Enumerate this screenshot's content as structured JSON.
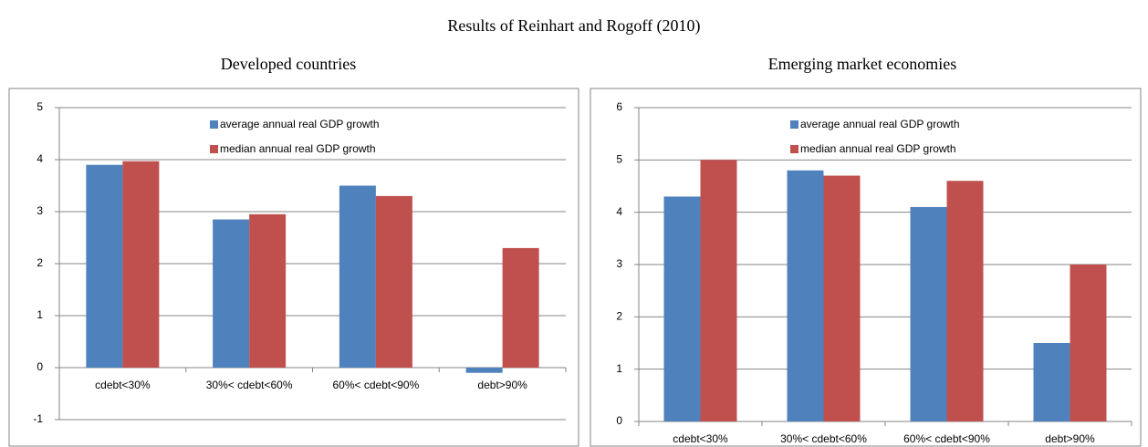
{
  "title": "Results of Reinhart and Rogoff (2010)",
  "chart_data": [
    {
      "type": "bar",
      "title": "Developed countries",
      "categories": [
        "cdebt<30%",
        "30%< cdebt<60%",
        "60%< cdebt<90%",
        "debt>90%"
      ],
      "series": [
        {
          "name": "average annual real GDP growth",
          "color": "#4f81bd",
          "values": [
            3.9,
            2.85,
            3.5,
            -0.1
          ]
        },
        {
          "name": "median annual real GDP growth",
          "color": "#c0504d",
          "values": [
            3.97,
            2.95,
            3.3,
            2.3
          ]
        }
      ],
      "ylim": [
        -1,
        5
      ],
      "yticks": [
        -1,
        0,
        1,
        2,
        3,
        4,
        5
      ],
      "grid": true,
      "legend": "top"
    },
    {
      "type": "bar",
      "title": "Emerging market economies",
      "categories": [
        "cdebt<30%",
        "30%< cdebt<60%",
        "60%< cdebt<90%",
        "debt>90%"
      ],
      "series": [
        {
          "name": "average annual real GDP growth",
          "color": "#4f81bd",
          "values": [
            4.3,
            4.8,
            4.1,
            1.5
          ]
        },
        {
          "name": "median annual real GDP growth",
          "color": "#c0504d",
          "values": [
            5.0,
            4.7,
            4.6,
            3.0
          ]
        }
      ],
      "ylim": [
        0,
        6
      ],
      "yticks": [
        0,
        1,
        2,
        3,
        4,
        5,
        6
      ],
      "grid": true,
      "legend": "top"
    }
  ]
}
